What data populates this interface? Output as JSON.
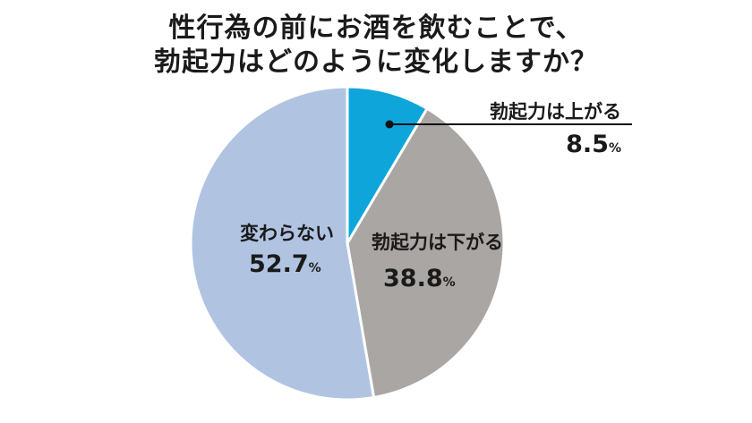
{
  "title": {
    "line1": "性行為の前にお酒を飲むことで、",
    "line2": "勃起力はどのように変化しますか？"
  },
  "chart_data": {
    "type": "pie",
    "title": "性行為の前にお酒を飲むことで、勃起力はどのように変化しますか？",
    "unit": "%",
    "start": "12 o'clock",
    "direction": "clockwise",
    "slices": [
      {
        "label": "勃起力は上がる",
        "value": 8.5,
        "display": "8.5",
        "color": "#0ea5db"
      },
      {
        "label": "勃起力は下がる",
        "value": 38.8,
        "display": "38.8",
        "color": "#a9a6a4"
      },
      {
        "label": "変わらない",
        "value": 52.7,
        "display": "52.7",
        "color": "#b0c4e2"
      }
    ]
  }
}
